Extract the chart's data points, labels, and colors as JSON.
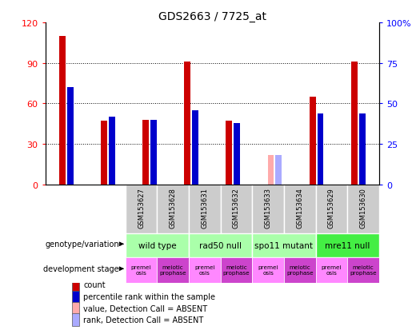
{
  "title": "GDS2663 / 7725_at",
  "samples": [
    "GSM153627",
    "GSM153628",
    "GSM153631",
    "GSM153632",
    "GSM153633",
    "GSM153634",
    "GSM153629",
    "GSM153630"
  ],
  "count_values": [
    110,
    47,
    48,
    91,
    47,
    0,
    65,
    91
  ],
  "percentile_values": [
    60,
    42,
    40,
    46,
    38,
    0,
    44,
    44
  ],
  "absent_count": [
    0,
    0,
    0,
    0,
    0,
    22,
    0,
    0
  ],
  "absent_percentile": [
    0,
    0,
    0,
    0,
    0,
    18,
    0,
    0
  ],
  "ylim_left": [
    0,
    120
  ],
  "ylim_right": [
    0,
    100
  ],
  "yticks_left": [
    0,
    30,
    60,
    90,
    120
  ],
  "yticks_right": [
    0,
    25,
    50,
    75,
    100
  ],
  "yticklabels_right": [
    "0",
    "25",
    "50",
    "75",
    "100%"
  ],
  "bar_color_red": "#cc0000",
  "bar_color_blue": "#0000cc",
  "bar_color_pink": "#ffaaaa",
  "bar_color_lightblue": "#aaaaff",
  "bg_color": "#ffffff",
  "genotype_groups": [
    {
      "label": "wild type",
      "span": [
        0,
        2
      ],
      "color": "#aaffaa"
    },
    {
      "label": "rad50 null",
      "span": [
        2,
        4
      ],
      "color": "#aaffaa"
    },
    {
      "label": "spo11 mutant",
      "span": [
        4,
        6
      ],
      "color": "#aaffaa"
    },
    {
      "label": "mre11 null",
      "span": [
        6,
        8
      ],
      "color": "#44ee44"
    }
  ],
  "dev_stages": [
    {
      "label": "premei\nosis",
      "color": "#ff88ff"
    },
    {
      "label": "meiotic\nprophase",
      "color": "#cc44cc"
    },
    {
      "label": "premei\nosis",
      "color": "#ff88ff"
    },
    {
      "label": "meiotic\nprophase",
      "color": "#cc44cc"
    },
    {
      "label": "premei\nosis",
      "color": "#ff88ff"
    },
    {
      "label": "meiotic\nprophase",
      "color": "#cc44cc"
    },
    {
      "label": "premei\nosis",
      "color": "#ff88ff"
    },
    {
      "label": "meiotic\nprophase",
      "color": "#cc44cc"
    }
  ],
  "legend_items": [
    {
      "color": "#cc0000",
      "label": "count"
    },
    {
      "color": "#0000cc",
      "label": "percentile rank within the sample"
    },
    {
      "color": "#ffaaaa",
      "label": "value, Detection Call = ABSENT"
    },
    {
      "color": "#aaaaff",
      "label": "rank, Detection Call = ABSENT"
    }
  ],
  "label_geno": "genotype/variation",
  "label_dev": "development stage",
  "xtick_bg": "#cccccc",
  "bar_width": 0.15,
  "bar_gap": 0.04
}
